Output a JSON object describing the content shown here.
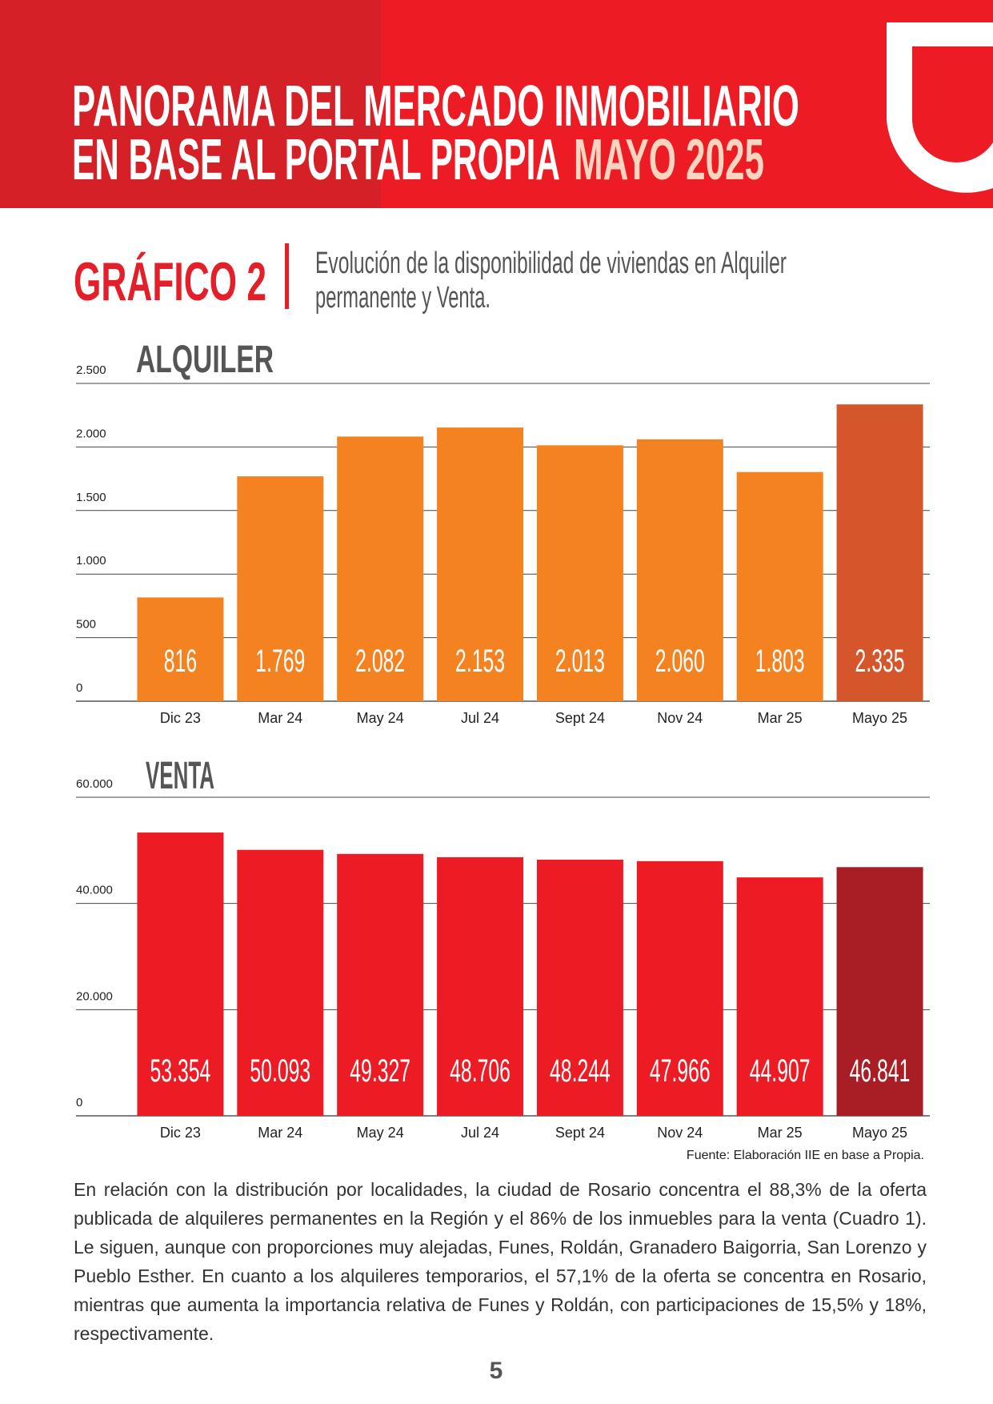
{
  "header": {
    "title_line1": "PANORAMA DEL MERCADO INMOBILIARIO",
    "title_line2": "EN BASE AL PORTAL PROPIA",
    "highlight": "MAYO 2025"
  },
  "figure": {
    "label": "GRÁFICO 2",
    "caption_line1": "Evolución de la disponibilidad de viviendas en Alquiler",
    "caption_line2": "permanente y Venta."
  },
  "chart_data": [
    {
      "type": "bar",
      "title": "ALQUILER",
      "categories": [
        "Dic 23",
        "Mar 24",
        "May 24",
        "Jul 24",
        "Sept 24",
        "Nov 24",
        "Mar 25",
        "Mayo 25"
      ],
      "values": [
        816,
        1769,
        2082,
        2153,
        2013,
        2060,
        1803,
        2335
      ],
      "value_labels": [
        "816",
        "1.769",
        "2.082",
        "2.153",
        "2.013",
        "2.060",
        "1.803",
        "2.335"
      ],
      "colors": [
        "#f58220",
        "#f58220",
        "#f58220",
        "#f58220",
        "#f58220",
        "#f58220",
        "#f58220",
        "#d4562a"
      ],
      "ylim": [
        0,
        2500
      ],
      "yticks": [
        0,
        500,
        {
          "value": 1000,
          "label": "1.000"
        },
        {
          "value": 1500,
          "label": "1.500"
        },
        {
          "value": 2000,
          "label": "2.000"
        },
        {
          "value": 2500,
          "label": "2.500"
        }
      ],
      "grid": true
    },
    {
      "type": "bar",
      "title": "VENTA",
      "categories": [
        "Dic 23",
        "Mar 24",
        "May 24",
        "Jul 24",
        "Sept 24",
        "Nov 24",
        "Mar 25",
        "Mayo 25"
      ],
      "values": [
        53354,
        50093,
        49327,
        48706,
        48244,
        47966,
        44907,
        46841
      ],
      "value_labels": [
        "53.354",
        "50.093",
        "49.327",
        "48.706",
        "48.244",
        "47.966",
        "44.907",
        "46.841"
      ],
      "colors": [
        "#ed1c24",
        "#ed1c24",
        "#ed1c24",
        "#ed1c24",
        "#ed1c24",
        "#ed1c24",
        "#ed1c24",
        "#a91d24"
      ],
      "ylim": [
        0,
        60000
      ],
      "yticks": [
        0,
        {
          "value": 20000,
          "label": "20.000"
        },
        {
          "value": 40000,
          "label": "40.000"
        },
        {
          "value": 60000,
          "label": "60.000"
        }
      ],
      "grid": true
    }
  ],
  "source": "Fuente: Elaboración IIE en base a Propia.",
  "body": "En relación con la distribución por localidades, la ciudad de Rosario concentra el 88,3% de la oferta publicada de alquileres permanentes en la Región y el 86% de los inmuebles para la venta (Cuadro 1). Le siguen, aunque con proporciones muy alejadas, Funes, Roldán, Granadero Baigorria, San Lorenzo y Pueblo Esther. En cuanto a los alquileres temporarios, el 57,1% de la oferta se concentra en Rosario, mientras que aumenta la importancia relativa de Funes y Roldán, con participaciones de 15,5% y 18%, respectivamente.",
  "page_number": "5"
}
